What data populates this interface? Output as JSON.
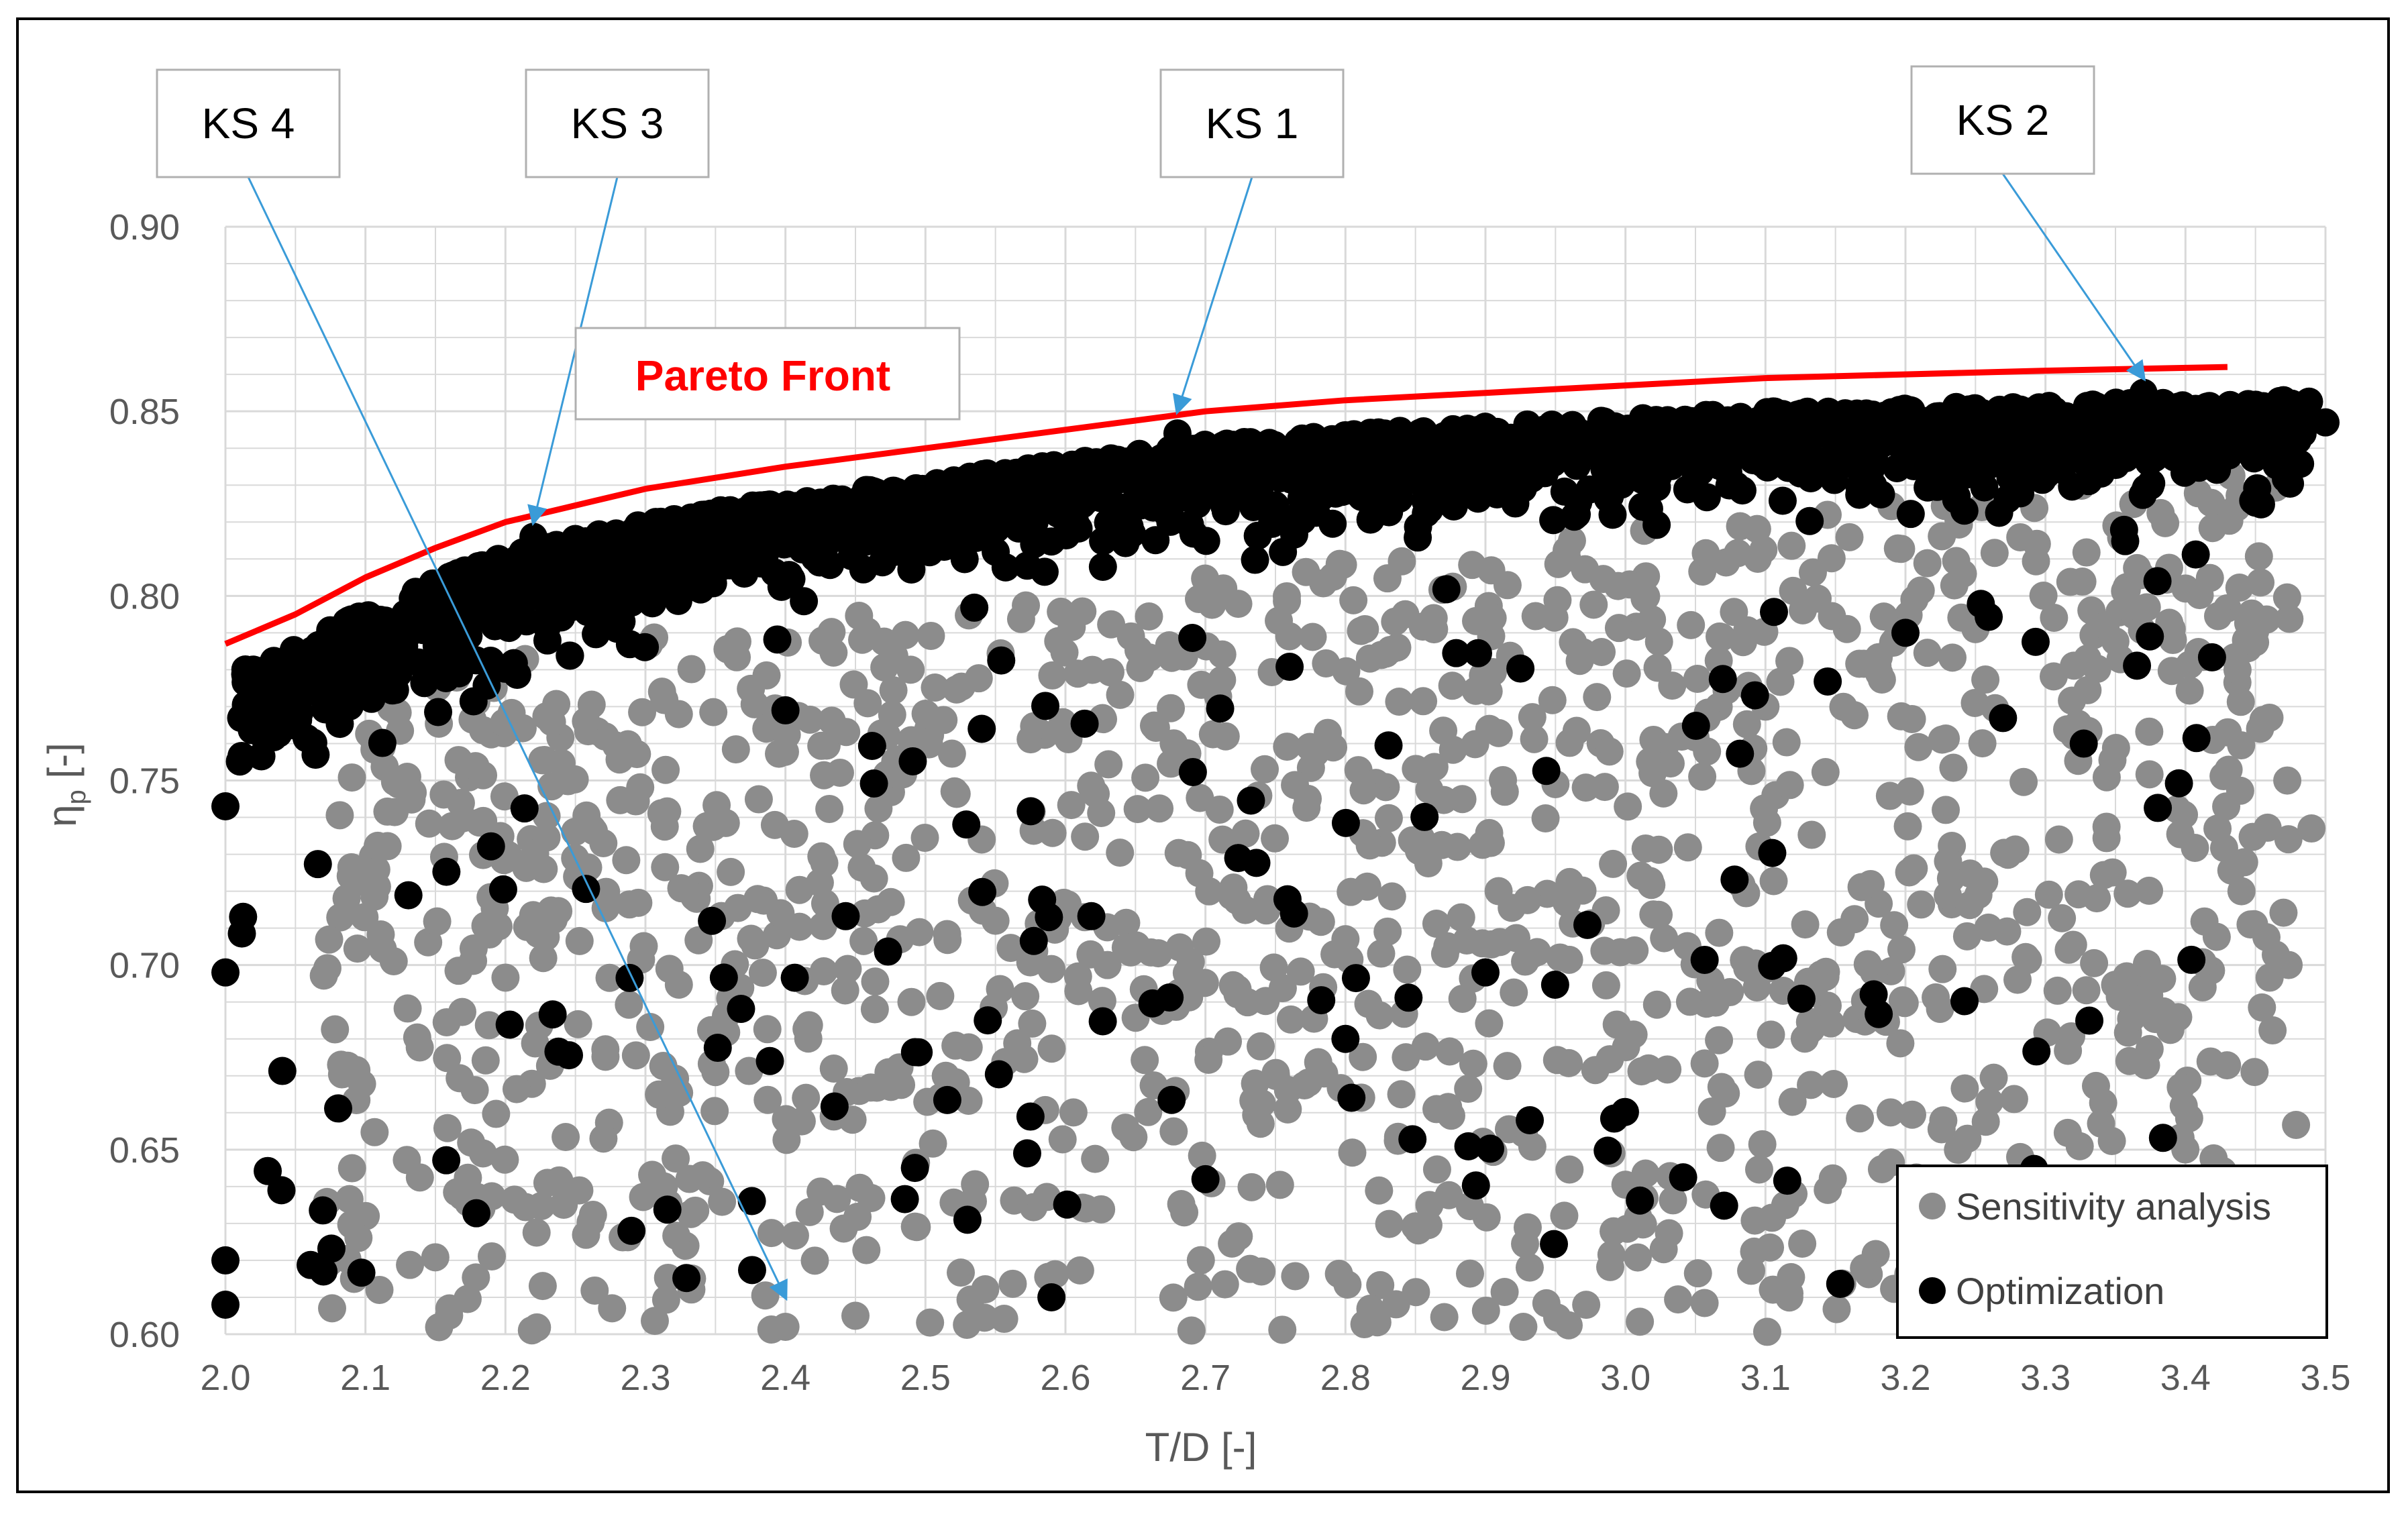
{
  "chart_data": {
    "type": "scatter",
    "xlabel": "T/D [-]",
    "ylabel": "η",
    "ylabel_sub": "p",
    "ylabel_unit": " [-]",
    "xlim": [
      2.0,
      3.5
    ],
    "ylim": [
      0.6,
      0.9
    ],
    "x_ticks": [
      2.0,
      2.1,
      2.2,
      2.3,
      2.4,
      2.5,
      2.6,
      2.7,
      2.8,
      2.9,
      3.0,
      3.1,
      3.2,
      3.3,
      3.4,
      3.5
    ],
    "y_ticks": [
      0.6,
      0.65,
      0.7,
      0.75,
      0.8,
      0.85,
      0.9
    ],
    "grid": true,
    "legend_position": "bottom-right",
    "colors": {
      "sensitivity": "#8c8c8c",
      "optimization": "#000000",
      "pareto": "#ff0000",
      "annotation_arrow": "#3a9bd8",
      "grid": "#d9d9d9",
      "axis_text": "#595959"
    },
    "series": [
      {
        "name": "Sensitivity analysis",
        "color": "#8c8c8c",
        "distribution": "broad cloud, y from 0.60 to about 0.83, spread across T/D 2.05 to 3.48",
        "sample_points": [
          [
            2.4,
            0.602
          ],
          [
            2.69,
            0.601
          ],
          [
            2.45,
            0.605
          ],
          [
            2.11,
            0.612
          ],
          [
            2.16,
            0.607
          ],
          [
            2.23,
            0.641
          ],
          [
            2.27,
            0.653
          ],
          [
            2.35,
            0.671
          ],
          [
            2.49,
            0.69
          ],
          [
            2.55,
            0.712
          ],
          [
            2.63,
            0.7
          ],
          [
            2.72,
            0.721
          ],
          [
            2.8,
            0.707
          ],
          [
            2.88,
            0.732
          ],
          [
            2.95,
            0.749
          ],
          [
            3.02,
            0.761
          ],
          [
            3.1,
            0.77
          ],
          [
            3.18,
            0.781
          ],
          [
            3.25,
            0.791
          ],
          [
            3.33,
            0.783
          ],
          [
            3.4,
            0.802
          ],
          [
            3.46,
            0.767
          ],
          [
            3.49,
            0.737
          ],
          [
            3.44,
            0.72
          ],
          [
            3.12,
            0.638
          ],
          [
            2.99,
            0.649
          ],
          [
            2.74,
            0.617
          ],
          [
            3.36,
            0.674
          ],
          [
            3.26,
            0.663
          ],
          [
            2.86,
            0.635
          ]
        ]
      },
      {
        "name": "Optimization",
        "color": "#000000",
        "distribution": "dense band just below the Pareto front, y from 0.74 to 0.855, plus scattered lower points",
        "sample_points": [
          [
            2.0,
            0.743
          ],
          [
            2.0,
            0.698
          ],
          [
            2.0,
            0.62
          ],
          [
            2.0,
            0.608
          ],
          [
            2.04,
            0.639
          ],
          [
            2.07,
            0.617
          ],
          [
            2.22,
            0.816
          ],
          [
            2.68,
            0.844
          ],
          [
            3.37,
            0.855
          ],
          [
            3.5,
            0.847
          ],
          [
            2.4,
            0.769
          ],
          [
            2.29,
            0.628
          ],
          [
            2.53,
            0.631
          ],
          [
            2.59,
            0.61
          ],
          [
            2.7,
            0.642
          ],
          [
            2.8,
            0.68
          ],
          [
            2.9,
            0.698
          ],
          [
            3.2,
            0.79
          ],
          [
            3.38,
            0.804
          ],
          [
            3.47,
            0.853
          ]
        ]
      }
    ],
    "pareto_front": {
      "name": "Pareto Front",
      "points": [
        [
          2.0,
          0.787
        ],
        [
          2.05,
          0.795
        ],
        [
          2.1,
          0.805
        ],
        [
          2.15,
          0.813
        ],
        [
          2.2,
          0.82
        ],
        [
          2.3,
          0.829
        ],
        [
          2.4,
          0.835
        ],
        [
          2.5,
          0.84
        ],
        [
          2.6,
          0.845
        ],
        [
          2.7,
          0.85
        ],
        [
          2.8,
          0.853
        ],
        [
          2.9,
          0.855
        ],
        [
          3.0,
          0.857
        ],
        [
          3.1,
          0.859
        ],
        [
          3.2,
          0.86
        ],
        [
          3.3,
          0.861
        ],
        [
          3.43,
          0.862
        ]
      ]
    },
    "annotations": [
      {
        "label": "KS 4",
        "target": [
          2.4,
          0.61
        ]
      },
      {
        "label": "KS 3",
        "target": [
          2.22,
          0.82
        ]
      },
      {
        "label": "KS 1",
        "target": [
          2.68,
          0.85
        ]
      },
      {
        "label": "KS 2",
        "target": [
          3.37,
          0.859
        ]
      }
    ],
    "pareto_label": "Pareto Front",
    "legend": [
      {
        "label": "Sensitivity analysis",
        "color": "#8c8c8c"
      },
      {
        "label": "Optimization",
        "color": "#000000"
      }
    ]
  }
}
